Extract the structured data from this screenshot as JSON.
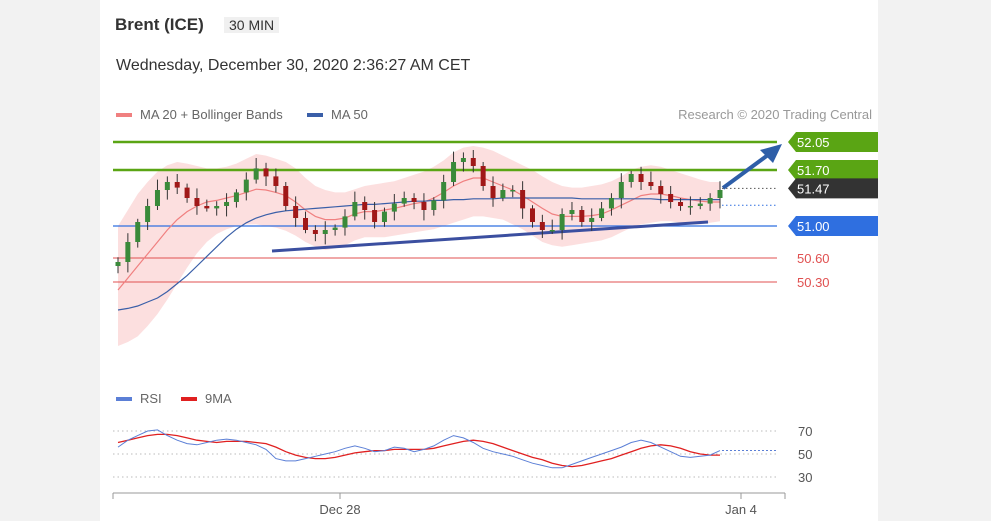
{
  "header": {
    "instrument": "Brent (ICE)",
    "interval": "30 MIN",
    "datetime": "Wednesday, December 30, 2020 2:36:27 AM CET",
    "credit": "Research © 2020 Trading Central"
  },
  "legend": {
    "ma20_bb": {
      "label": "MA 20 + Bollinger Bands",
      "color": "#f08080"
    },
    "ma50": {
      "label": "MA 50",
      "color": "#3a5fa8"
    },
    "rsi": {
      "label": "RSI",
      "color": "#5b7fd6"
    },
    "rsi_ma": {
      "label": "9MA",
      "color": "#e02020"
    }
  },
  "colors": {
    "up_candle": "#3a8a3a",
    "down_candle": "#a01818",
    "resistance": "#5aa514",
    "support_key": "#2f6fe0",
    "support_red": "#e05050",
    "last_price_bg": "#333333",
    "forecast_arrow": "#2e5ea8",
    "band_fill": "#fbd4d4"
  },
  "levels": [
    {
      "value": 52.05,
      "label": "52.05",
      "style": "resistance"
    },
    {
      "value": 51.7,
      "label": "51.70",
      "style": "resistance"
    },
    {
      "value": 51.47,
      "label": "51.47",
      "style": "last_price"
    },
    {
      "value": 51.0,
      "label": "51.00",
      "style": "pivot"
    },
    {
      "value": 50.6,
      "label": "50.60",
      "style": "support"
    },
    {
      "value": 50.3,
      "label": "50.30",
      "style": "support"
    }
  ],
  "x_axis": {
    "ticks": [
      "Dec 28",
      "Jan 4"
    ]
  },
  "rsi_axis": {
    "ticks": [
      "70",
      "50",
      "30"
    ],
    "range": [
      20,
      90
    ]
  },
  "chart_data": {
    "type": "line",
    "title": "Brent (ICE)",
    "price_range": [
      49.5,
      52.2
    ],
    "close": [
      50.55,
      50.8,
      51.05,
      51.25,
      51.45,
      51.55,
      51.48,
      51.35,
      51.25,
      51.22,
      51.25,
      51.3,
      51.42,
      51.58,
      51.72,
      51.62,
      51.5,
      51.25,
      51.1,
      50.95,
      50.9,
      50.95,
      50.98,
      51.12,
      51.3,
      51.2,
      51.05,
      51.18,
      51.28,
      51.35,
      51.3,
      51.2,
      51.32,
      51.55,
      51.8,
      51.85,
      51.75,
      51.5,
      51.35,
      51.45,
      51.45,
      51.22,
      51.05,
      50.95,
      50.95,
      51.15,
      51.2,
      51.05,
      51.1,
      51.22,
      51.35,
      51.55,
      51.65,
      51.55,
      51.5,
      51.4,
      51.3,
      51.25,
      51.25,
      51.28,
      51.35,
      51.45
    ],
    "ma20": [
      50.2,
      50.35,
      50.5,
      50.65,
      50.8,
      50.95,
      51.08,
      51.18,
      51.25,
      51.3,
      51.32,
      51.35,
      51.38,
      51.42,
      51.46,
      51.45,
      51.42,
      51.38,
      51.3,
      51.2,
      51.12,
      51.08,
      51.08,
      51.1,
      51.15,
      51.18,
      51.18,
      51.2,
      51.22,
      51.25,
      51.28,
      51.3,
      51.35,
      51.42,
      51.5,
      51.56,
      51.6,
      51.6,
      51.55,
      51.5,
      51.45,
      51.38,
      51.3,
      51.22,
      51.15,
      51.12,
      51.12,
      51.12,
      51.13,
      51.15,
      51.2,
      51.26,
      51.32,
      51.38,
      51.4,
      51.4,
      51.38,
      51.35,
      51.33,
      51.31,
      51.3,
      51.3
    ],
    "ma50": [
      49.95,
      49.97,
      50.0,
      50.05,
      50.1,
      50.18,
      50.28,
      50.38,
      50.5,
      50.62,
      50.74,
      50.86,
      50.96,
      51.04,
      51.1,
      51.14,
      51.17,
      51.19,
      51.2,
      51.21,
      51.22,
      51.23,
      51.24,
      51.25,
      51.26,
      51.27,
      51.27,
      51.28,
      51.29,
      51.3,
      51.31,
      51.31,
      51.32,
      51.32,
      51.33,
      51.33,
      51.34,
      51.34,
      51.34,
      51.35,
      51.35,
      51.35,
      51.35,
      51.35,
      51.35,
      51.35,
      51.35,
      51.34,
      51.34,
      51.34,
      51.34,
      51.34,
      51.34,
      51.34,
      51.34,
      51.33,
      51.33,
      51.33,
      51.33,
      51.33,
      51.33,
      51.33
    ],
    "bb_upper": [
      51.0,
      51.2,
      51.4,
      51.55,
      51.68,
      51.76,
      51.8,
      51.78,
      51.75,
      51.72,
      51.72,
      51.74,
      51.78,
      51.84,
      51.9,
      51.88,
      51.84,
      51.8,
      51.72,
      51.6,
      51.5,
      51.45,
      51.42,
      51.42,
      51.46,
      51.5,
      51.52,
      51.54,
      51.56,
      51.6,
      51.64,
      51.68,
      51.74,
      51.82,
      51.92,
      51.98,
      52.0,
      51.98,
      51.94,
      51.88,
      51.82,
      51.76,
      51.7,
      51.62,
      51.55,
      51.5,
      51.48,
      51.48,
      51.5,
      51.52,
      51.56,
      51.62,
      51.7,
      51.74,
      51.76,
      51.74,
      51.7,
      51.66,
      51.62,
      51.58,
      51.55,
      51.55
    ],
    "bb_lower": [
      49.5,
      49.55,
      49.62,
      49.75,
      49.9,
      50.08,
      50.28,
      50.48,
      50.66,
      50.8,
      50.9,
      50.96,
      51.0,
      51.02,
      51.02,
      51.0,
      50.98,
      50.94,
      50.88,
      50.8,
      50.74,
      50.7,
      50.72,
      50.76,
      50.82,
      50.86,
      50.86,
      50.86,
      50.88,
      50.9,
      50.92,
      50.94,
      50.96,
      51.0,
      51.04,
      51.08,
      51.12,
      51.12,
      51.1,
      51.08,
      51.02,
      50.96,
      50.88,
      50.8,
      50.76,
      50.74,
      50.76,
      50.78,
      50.8,
      50.82,
      50.86,
      50.92,
      50.98,
      51.02,
      51.04,
      51.06,
      51.06,
      51.04,
      51.02,
      51.02,
      51.04,
      51.06
    ],
    "rsi": [
      56,
      62,
      66,
      70,
      71,
      66,
      62,
      59,
      58,
      60,
      62,
      63,
      62,
      60,
      58,
      54,
      46,
      44,
      44,
      46,
      48,
      50,
      52,
      55,
      57,
      55,
      52,
      53,
      56,
      55,
      52,
      54,
      57,
      62,
      66,
      64,
      60,
      55,
      52,
      50,
      48,
      45,
      42,
      40,
      38,
      38,
      41,
      44,
      47,
      50,
      53,
      56,
      60,
      62,
      60,
      56,
      52,
      48,
      47,
      48,
      49,
      53
    ],
    "rsi_ma": [
      60,
      62,
      64,
      66,
      67,
      67,
      66,
      64,
      62,
      61,
      60,
      61,
      61,
      61,
      60,
      59,
      56,
      52,
      49,
      47,
      46,
      46,
      47,
      49,
      51,
      52,
      53,
      53,
      54,
      54,
      54,
      54,
      55,
      57,
      59,
      61,
      62,
      61,
      59,
      56,
      53,
      50,
      47,
      45,
      42,
      40,
      39,
      40,
      42,
      44,
      46,
      49,
      52,
      55,
      57,
      58,
      57,
      55,
      52,
      50,
      49,
      49
    ]
  }
}
